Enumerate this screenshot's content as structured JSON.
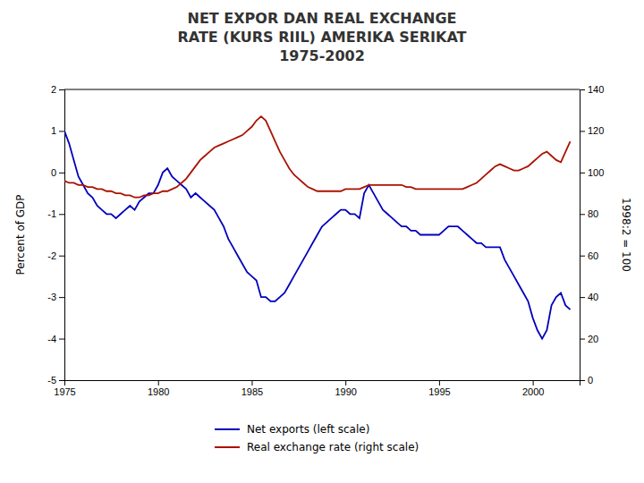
{
  "chart_data": {
    "type": "line",
    "title": "NET EXPOR DAN REAL EXCHANGE\nRATE (KURS RIIL) AMERIKA SERIKAT\n1975-2002",
    "y_label": "Percent of GDP",
    "y2_label": "1998:2 = 100",
    "x": [
      1975,
      1975.25,
      1975.5,
      1975.75,
      1976,
      1976.25,
      1976.5,
      1976.75,
      1977,
      1977.25,
      1977.5,
      1977.75,
      1978,
      1978.25,
      1978.5,
      1978.75,
      1979,
      1979.25,
      1979.5,
      1979.75,
      1980,
      1980.25,
      1980.5,
      1980.75,
      1981,
      1981.25,
      1981.5,
      1981.75,
      1982,
      1982.25,
      1982.5,
      1982.75,
      1983,
      1983.25,
      1983.5,
      1983.75,
      1984,
      1984.25,
      1984.5,
      1984.75,
      1985,
      1985.25,
      1985.5,
      1985.75,
      1986,
      1986.25,
      1986.5,
      1986.75,
      1987,
      1987.25,
      1987.5,
      1987.75,
      1988,
      1988.25,
      1988.5,
      1988.75,
      1989,
      1989.25,
      1989.5,
      1989.75,
      1990,
      1990.25,
      1990.5,
      1990.75,
      1991,
      1991.25,
      1991.5,
      1991.75,
      1992,
      1992.25,
      1992.5,
      1992.75,
      1993,
      1993.25,
      1993.5,
      1993.75,
      1994,
      1994.25,
      1994.5,
      1994.75,
      1995,
      1995.25,
      1995.5,
      1995.75,
      1996,
      1996.25,
      1996.5,
      1996.75,
      1997,
      1997.25,
      1997.5,
      1997.75,
      1998,
      1998.25,
      1998.5,
      1998.75,
      1999,
      1999.25,
      1999.5,
      1999.75,
      2000,
      2000.25,
      2000.5,
      2000.75,
      2001,
      2001.25,
      2001.5,
      2001.75,
      2002
    ],
    "xlim": [
      1975,
      2002.5
    ],
    "xticks": [
      1975,
      1980,
      1985,
      1990,
      1995,
      2000
    ],
    "ylim": [
      -5,
      2
    ],
    "yticks": [
      -5,
      -4,
      -3,
      -2,
      -1,
      0,
      1,
      2
    ],
    "y2lim": [
      0,
      140
    ],
    "y2ticks": [
      0,
      20,
      40,
      60,
      80,
      100,
      120,
      140
    ],
    "grid": false,
    "legend": "bottom",
    "series": [
      {
        "name": "Net exports (left scale)",
        "color": "#0000bb",
        "axis": "y",
        "values": [
          1.0,
          0.7,
          0.3,
          -0.1,
          -0.3,
          -0.5,
          -0.6,
          -0.8,
          -0.9,
          -1.0,
          -1.0,
          -1.1,
          -1.0,
          -0.9,
          -0.8,
          -0.9,
          -0.7,
          -0.6,
          -0.5,
          -0.5,
          -0.3,
          0.0,
          0.1,
          -0.1,
          -0.2,
          -0.3,
          -0.4,
          -0.6,
          -0.5,
          -0.6,
          -0.7,
          -0.8,
          -0.9,
          -1.1,
          -1.3,
          -1.6,
          -1.8,
          -2.0,
          -2.2,
          -2.4,
          -2.5,
          -2.6,
          -3.0,
          -3.0,
          -3.1,
          -3.1,
          -3.0,
          -2.9,
          -2.7,
          -2.5,
          -2.3,
          -2.1,
          -1.9,
          -1.7,
          -1.5,
          -1.3,
          -1.2,
          -1.1,
          -1.0,
          -0.9,
          -0.9,
          -1.0,
          -1.0,
          -1.1,
          -0.5,
          -0.3,
          -0.5,
          -0.7,
          -0.9,
          -1.0,
          -1.1,
          -1.2,
          -1.3,
          -1.3,
          -1.4,
          -1.4,
          -1.5,
          -1.5,
          -1.5,
          -1.5,
          -1.5,
          -1.4,
          -1.3,
          -1.3,
          -1.3,
          -1.4,
          -1.5,
          -1.6,
          -1.7,
          -1.7,
          -1.8,
          -1.8,
          -1.8,
          -1.8,
          -2.1,
          -2.3,
          -2.5,
          -2.7,
          -2.9,
          -3.1,
          -3.5,
          -3.8,
          -4.0,
          -3.8,
          -3.2,
          -3.0,
          -2.9,
          -3.2,
          -3.3
        ]
      },
      {
        "name": "Real exchange rate (right scale)",
        "color": "#aa1100",
        "axis": "y2",
        "values": [
          96,
          95,
          95,
          94,
          94,
          93,
          93,
          92,
          92,
          91,
          91,
          90,
          90,
          89,
          89,
          88,
          88,
          89,
          89,
          90,
          90,
          91,
          91,
          92,
          93,
          95,
          97,
          100,
          103,
          106,
          108,
          110,
          112,
          113,
          114,
          115,
          116,
          117,
          118,
          120,
          122,
          125,
          127,
          125,
          120,
          115,
          110,
          106,
          102,
          99,
          97,
          95,
          93,
          92,
          91,
          91,
          91,
          91,
          91,
          91,
          92,
          92,
          92,
          92,
          93,
          94,
          94,
          94,
          94,
          94,
          94,
          94,
          94,
          93,
          93,
          92,
          92,
          92,
          92,
          92,
          92,
          92,
          92,
          92,
          92,
          92,
          93,
          94,
          95,
          97,
          99,
          101,
          103,
          104,
          103,
          102,
          101,
          101,
          102,
          103,
          105,
          107,
          109,
          110,
          108,
          106,
          105,
          110,
          115
        ]
      }
    ]
  }
}
